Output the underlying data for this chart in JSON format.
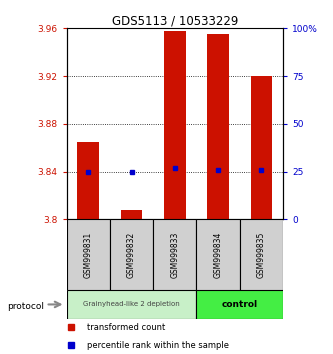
{
  "title": "GDS5113 / 10533229",
  "samples": [
    "GSM999831",
    "GSM999832",
    "GSM999833",
    "GSM999834",
    "GSM999835"
  ],
  "bar_bottom": [
    3.8,
    3.8,
    3.8,
    3.8,
    3.8
  ],
  "bar_top": [
    3.865,
    3.808,
    3.958,
    3.955,
    3.92
  ],
  "blue_dot_y": [
    3.84,
    3.84,
    3.843,
    3.841,
    3.841
  ],
  "ylim": [
    3.8,
    3.96
  ],
  "yticks_left": [
    3.8,
    3.84,
    3.88,
    3.92,
    3.96
  ],
  "yticks_right": [
    0,
    25,
    50,
    75,
    100
  ],
  "ytick_labels_left": [
    "3.8",
    "3.84",
    "3.88",
    "3.92",
    "3.96"
  ],
  "ytick_labels_right": [
    "0",
    "25",
    "50",
    "75",
    "100%"
  ],
  "bar_color": "#cc1100",
  "dot_color": "#0000cc",
  "group1_samples": [
    0,
    1,
    2
  ],
  "group2_samples": [
    3,
    4
  ],
  "group1_label": "Grainyhead-like 2 depletion",
  "group2_label": "control",
  "group1_color": "#c8f0c8",
  "group2_color": "#44ee44",
  "protocol_label": "protocol",
  "legend_bar_label": "transformed count",
  "legend_dot_label": "percentile rank within the sample",
  "grid_color": "#000000",
  "background_color": "#ffffff",
  "bar_width": 0.5
}
